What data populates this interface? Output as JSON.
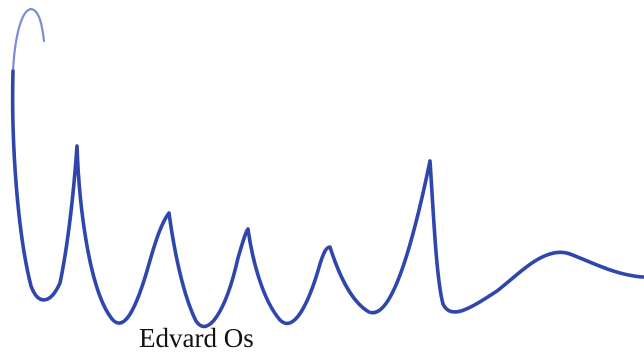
{
  "document": {
    "signer_name": "Edvard Os",
    "ink_color": "#2f46ad",
    "text_color": "#111111",
    "background_color": "#ffffff"
  }
}
